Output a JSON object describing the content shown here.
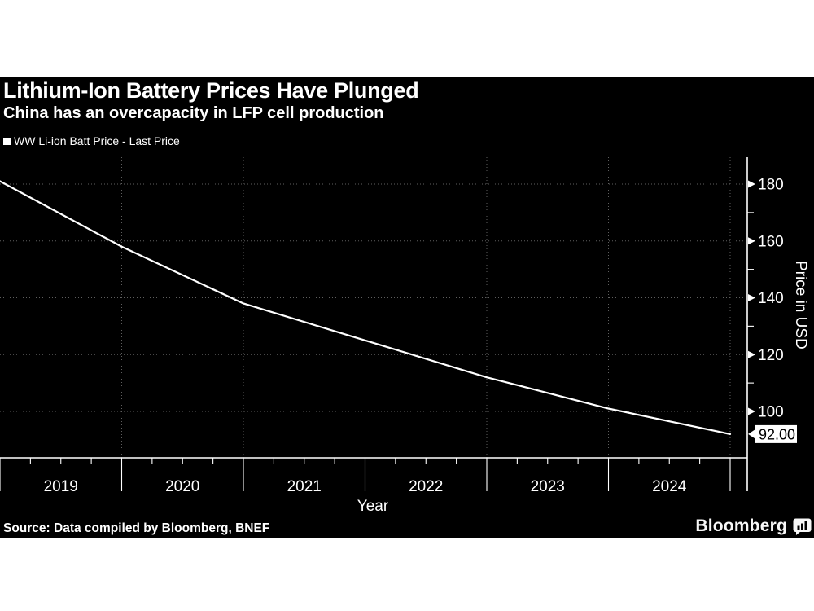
{
  "page": {
    "background_color": "#ffffff",
    "panel_color": "#000000",
    "text_color": "#ffffff"
  },
  "header": {
    "title": "Lithium-Ion Battery Prices Have Plunged",
    "subtitle": "China has an overcapacity in LFP cell production"
  },
  "legend": {
    "marker": "square-icon",
    "marker_color": "#ffffff",
    "label": "WW Li-ion Batt Price - Last Price"
  },
  "footer": {
    "source": "Source: Data compiled by Bloomberg, BNEF",
    "logo_text": "Bloomberg",
    "logo_icon": "bar-chart-bubble-icon"
  },
  "chart_data": {
    "type": "line",
    "title": "Lithium-Ion Battery Prices Have Plunged",
    "subtitle": "China has an overcapacity in LFP cell production",
    "xlabel": "Year",
    "ylabel": "Price in USD",
    "x_tick_labels": [
      "2019",
      "2020",
      "2021",
      "2022",
      "2023",
      "2024"
    ],
    "y_ticks_major": [
      100,
      120,
      140,
      160,
      180
    ],
    "y_ticks_minor": [
      110,
      130,
      150,
      170
    ],
    "ylim_approx": [
      84,
      189
    ],
    "x_span_years": [
      2019,
      2025
    ],
    "grid": "dotted",
    "legend_position": "top-left",
    "y_axis_side": "right",
    "axis_color": "#ffffff",
    "grid_color": "#5f5f5f",
    "line_color": "#ffffff",
    "series": [
      {
        "name": "WW Li-ion Batt Price - Last Price",
        "points": [
          [
            2019,
            181
          ],
          [
            2020,
            158
          ],
          [
            2021,
            138
          ],
          [
            2022,
            125
          ],
          [
            2023,
            112
          ],
          [
            2024,
            101
          ],
          [
            2025,
            92
          ]
        ]
      }
    ],
    "last_price_label": "92.00"
  }
}
